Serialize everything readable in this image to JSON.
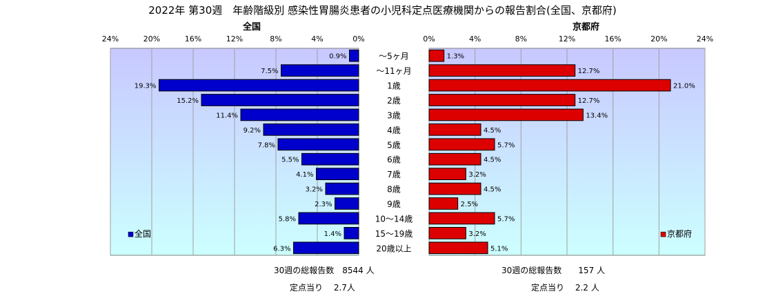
{
  "title": "2022年 第30週　年齢階級別 感染性胃腸炎患者の小児科定点医療機関からの報告割合(全国、京都府)",
  "colors": {
    "national_bar": "#0000cc",
    "kyoto_bar": "#dd0000",
    "plot_bg_top": "#c8c8ff",
    "plot_bg_bottom": "#ccffff"
  },
  "chart_data": [
    {
      "type": "bar",
      "orientation": "horizontal",
      "direction": "right-to-left",
      "panel_title": "全国",
      "categories": [
        "～5ヶ月",
        "～11ヶ月",
        "1歳",
        "2歳",
        "3歳",
        "4歳",
        "5歳",
        "6歳",
        "7歳",
        "8歳",
        "9歳",
        "10～14歳",
        "15～19歳",
        "20歳以上"
      ],
      "series": [
        {
          "name": "全国",
          "values": [
            0.9,
            7.5,
            19.3,
            15.2,
            11.4,
            9.2,
            7.8,
            5.5,
            4.1,
            3.2,
            2.3,
            5.8,
            1.4,
            6.3
          ]
        }
      ],
      "data_labels": [
        "0.9%",
        "7.5%",
        "19.3%",
        "15.2%",
        "11.4%",
        "9.2%",
        "7.8%",
        "5.5%",
        "4.1%",
        "3.2%",
        "2.3%",
        "5.8%",
        "1.4%",
        "6.3%"
      ],
      "xlim": [
        0,
        24
      ],
      "x_ticks": [
        24,
        20,
        16,
        12,
        8,
        4,
        0
      ],
      "x_tick_labels": [
        "24%",
        "20%",
        "16%",
        "12%",
        "8%",
        "4%",
        "0%"
      ],
      "legend": "bottom-left",
      "grid": true
    },
    {
      "type": "bar",
      "orientation": "horizontal",
      "direction": "left-to-right",
      "panel_title": "京都府",
      "categories": [
        "～5ヶ月",
        "～11ヶ月",
        "1歳",
        "2歳",
        "3歳",
        "4歳",
        "5歳",
        "6歳",
        "7歳",
        "8歳",
        "9歳",
        "10～14歳",
        "15～19歳",
        "20歳以上"
      ],
      "series": [
        {
          "name": "京都府",
          "values": [
            1.3,
            12.7,
            21.0,
            12.7,
            13.4,
            4.5,
            5.7,
            4.5,
            3.2,
            4.5,
            2.5,
            5.7,
            3.2,
            5.1
          ]
        }
      ],
      "data_labels": [
        "1.3%",
        "12.7%",
        "21.0%",
        "12.7%",
        "13.4%",
        "4.5%",
        "5.7%",
        "4.5%",
        "3.2%",
        "4.5%",
        "2.5%",
        "5.7%",
        "3.2%",
        "5.1%"
      ],
      "xlim": [
        0,
        24
      ],
      "x_ticks": [
        0,
        4,
        8,
        12,
        16,
        20,
        24
      ],
      "x_tick_labels": [
        "0%",
        "4%",
        "8%",
        "12%",
        "16%",
        "20%",
        "24%"
      ],
      "legend": "bottom-right",
      "grid": true
    }
  ],
  "footer": {
    "national_total": "30週の総報告数　8544 人",
    "national_per_sentinel": "定点当り　 2.7人",
    "kyoto_total": "30週の総報告数　　157 人",
    "kyoto_per_sentinel": "定点当り　 2.2 人"
  }
}
